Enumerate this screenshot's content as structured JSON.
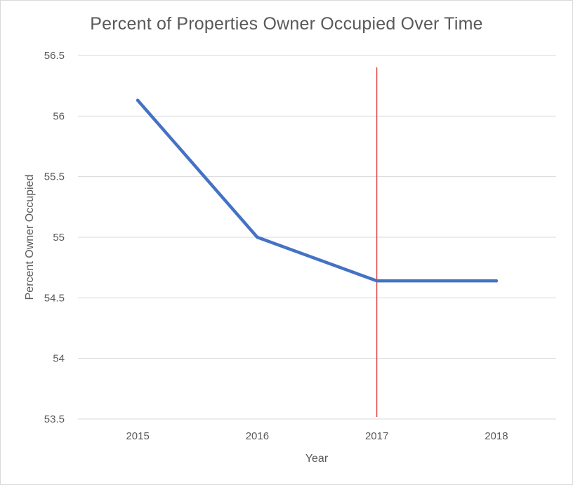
{
  "chart_data": {
    "type": "line",
    "title": "Percent of Properties Owner Occupied Over Time",
    "xlabel": "Year",
    "ylabel": "Percent Owner Occupied",
    "categories": [
      "2015",
      "2016",
      "2017",
      "2018"
    ],
    "series": [
      {
        "values": [
          56.13,
          55.0,
          54.64,
          54.64
        ],
        "color": "#4472c4"
      }
    ],
    "ylim": [
      53.5,
      56.5
    ],
    "yticks": [
      "53.5",
      "54",
      "54.5",
      "55",
      "55.5",
      "56",
      "56.5"
    ],
    "grid": true,
    "legend": "none",
    "annotations": [
      {
        "type": "vertical-line",
        "x": "2017",
        "color": "#e03c3c"
      }
    ]
  }
}
